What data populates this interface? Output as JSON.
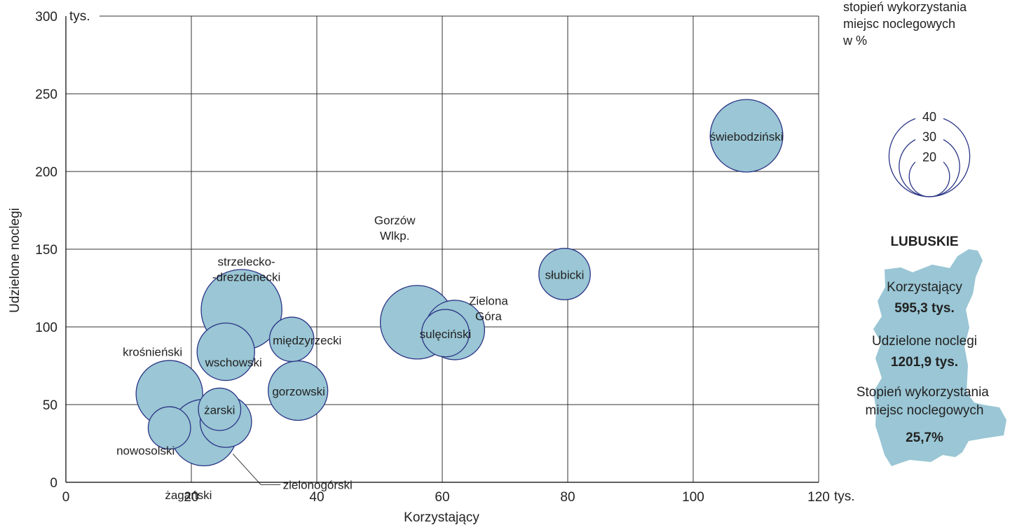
{
  "colors": {
    "bubble_fill": "#9ac6d5",
    "bubble_stroke": "#2b3585",
    "grid": "#333333",
    "map_fill": "#9ac6d5"
  },
  "chart_data": {
    "type": "scatter",
    "variant": "bubble",
    "xlabel": "Korzystający",
    "ylabel": "Udzielone noclegi",
    "x_unit": "tys.",
    "y_unit": "tys.",
    "xlim": [
      0,
      120
    ],
    "ylim": [
      0,
      300
    ],
    "x_ticks": [
      "0",
      "20",
      "40",
      "60",
      "80",
      "100",
      "120"
    ],
    "y_ticks": [
      "0",
      "50",
      "100",
      "150",
      "200",
      "250",
      "300"
    ],
    "grid": true,
    "size_legend": {
      "title_lines": [
        "stopień wykorzystania",
        "miejsc noclegowych",
        "w %"
      ],
      "values": [
        40,
        30,
        20
      ],
      "labels": [
        "40",
        "30",
        "20"
      ]
    },
    "points": [
      {
        "name": "świebodziński",
        "x": 108.5,
        "y": 223,
        "size": 36,
        "label": "świebodziński"
      },
      {
        "name": "słubicki",
        "x": 79.5,
        "y": 134,
        "size": 25.5,
        "label": "słubicki"
      },
      {
        "name": "Gorzów Wlkp.",
        "x": 56,
        "y": 103,
        "size": 36.5,
        "label_lines": [
          "Gorzów",
          "Wlkp."
        ]
      },
      {
        "name": "Zielona Góra",
        "x": 62,
        "y": 98,
        "size": 29.5,
        "label_lines": [
          "Zielona",
          "Góra"
        ]
      },
      {
        "name": "sulęciński",
        "x": 60.5,
        "y": 96,
        "size": 23.5,
        "label": "sulęciński"
      },
      {
        "name": "strzelecko-drezdenecki",
        "x": 28,
        "y": 111,
        "size": 40,
        "label_lines": [
          "strzelecko-",
          "-drezdenecki"
        ]
      },
      {
        "name": "międzyrzecki",
        "x": 36,
        "y": 92,
        "size": 22,
        "label": "międzyrzecki"
      },
      {
        "name": "wschowski",
        "x": 25.5,
        "y": 84,
        "size": 28.5,
        "label": "wschowski"
      },
      {
        "name": "gorzowski",
        "x": 37,
        "y": 59,
        "size": 29.5,
        "label": "gorzowski"
      },
      {
        "name": "krośnieński",
        "x": 16.5,
        "y": 57,
        "size": 33,
        "label": "krośnieński"
      },
      {
        "name": "żagański",
        "x": 22,
        "y": 32,
        "size": 33,
        "label": "żagański"
      },
      {
        "name": "zielonogórski",
        "x": 25.5,
        "y": 39,
        "size": 25.5,
        "label": "zielonogórski"
      },
      {
        "name": "żarski",
        "x": 24.5,
        "y": 47,
        "size": 21,
        "label": "żarski"
      },
      {
        "name": "nowosolski",
        "x": 16.5,
        "y": 35,
        "size": 21,
        "label": "nowosolski"
      }
    ]
  },
  "summary": {
    "title": "LUBUSKIE",
    "items": [
      {
        "label": "Korzystający",
        "value": "595,3 tys."
      },
      {
        "label": "Udzielone noclegi",
        "value": "1201,9 tys."
      },
      {
        "label": "Stopień wykorzystania\nmiejsc noclegowych",
        "value": "25,7%"
      }
    ]
  }
}
